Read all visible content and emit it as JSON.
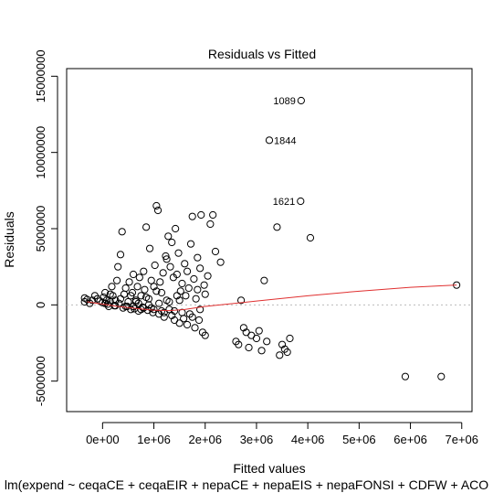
{
  "chart_data": {
    "type": "scatter",
    "title": "Residuals vs Fitted",
    "xlabel": "Fitted values",
    "ylabel": "Residuals",
    "caption": "lm(expend ~ ceqaCE + ceqaEIR + nepaCE + nepaEIS + nepaFONSI + CDFW + ACO",
    "xlim": [
      -700000,
      7200000
    ],
    "ylim": [
      -7000000,
      15500000
    ],
    "x_ticks": [
      0,
      1000000,
      2000000,
      3000000,
      4000000,
      5000000,
      6000000,
      7000000
    ],
    "x_tick_labels": [
      "0e+00",
      "1e+06",
      "2e+06",
      "3e+06",
      "4e+06",
      "5e+06",
      "6e+06",
      "7e+06"
    ],
    "y_ticks": [
      -5000000,
      0,
      5000000,
      10000000,
      15000000
    ],
    "y_tick_labels": [
      "-5000000",
      "0",
      "5000000",
      "10000000",
      "15000000"
    ],
    "colors": {
      "points": "#000000",
      "smooth": "#e03030",
      "zero_line": "#bbbbbb"
    },
    "labeled_points": [
      {
        "label": "1089",
        "x": 3870000,
        "y": 13400000
      },
      {
        "label": "1844",
        "x": 3250000,
        "y": 10800000
      },
      {
        "label": "1621",
        "x": 3860000,
        "y": 6800000
      }
    ],
    "points": [
      [
        -350000,
        200000
      ],
      [
        -350000,
        450000
      ],
      [
        -300000,
        350000
      ],
      [
        -250000,
        100000
      ],
      [
        -200000,
        300000
      ],
      [
        -150000,
        600000
      ],
      [
        -100000,
        400000
      ],
      [
        -50000,
        250000
      ],
      [
        0,
        150000
      ],
      [
        20000,
        500000
      ],
      [
        50000,
        800000
      ],
      [
        80000,
        300000
      ],
      [
        100000,
        50000
      ],
      [
        120000,
        -100000
      ],
      [
        150000,
        200000
      ],
      [
        180000,
        1200000
      ],
      [
        200000,
        600000
      ],
      [
        230000,
        -50000
      ],
      [
        250000,
        300000
      ],
      [
        280000,
        1600000
      ],
      [
        300000,
        2500000
      ],
      [
        320000,
        100000
      ],
      [
        350000,
        3300000
      ],
      [
        380000,
        4800000
      ],
      [
        400000,
        -200000
      ],
      [
        420000,
        700000
      ],
      [
        450000,
        1100000
      ],
      [
        480000,
        -100000
      ],
      [
        500000,
        200000
      ],
      [
        520000,
        1500000
      ],
      [
        550000,
        -300000
      ],
      [
        580000,
        800000
      ],
      [
        600000,
        2000000
      ],
      [
        620000,
        -250000
      ],
      [
        650000,
        300000
      ],
      [
        680000,
        1200000
      ],
      [
        700000,
        -400000
      ],
      [
        720000,
        1800000
      ],
      [
        750000,
        600000
      ],
      [
        780000,
        -150000
      ],
      [
        800000,
        2200000
      ],
      [
        820000,
        1000000
      ],
      [
        850000,
        5100000
      ],
      [
        880000,
        -350000
      ],
      [
        900000,
        400000
      ],
      [
        920000,
        3700000
      ],
      [
        950000,
        1600000
      ],
      [
        980000,
        -500000
      ],
      [
        1000000,
        1200000
      ],
      [
        1020000,
        2600000
      ],
      [
        1050000,
        6500000
      ],
      [
        1080000,
        6200000
      ],
      [
        1100000,
        -600000
      ],
      [
        1120000,
        1500000
      ],
      [
        1150000,
        800000
      ],
      [
        1180000,
        2100000
      ],
      [
        1200000,
        -800000
      ],
      [
        1230000,
        3200000
      ],
      [
        1250000,
        3000000
      ],
      [
        1280000,
        4500000
      ],
      [
        1300000,
        -300000
      ],
      [
        1320000,
        2500000
      ],
      [
        1350000,
        4100000
      ],
      [
        1380000,
        1800000
      ],
      [
        1400000,
        -1000000
      ],
      [
        1420000,
        5000000
      ],
      [
        1450000,
        2000000
      ],
      [
        1480000,
        3400000
      ],
      [
        1500000,
        -1200000
      ],
      [
        1520000,
        900000
      ],
      [
        1550000,
        1400000
      ],
      [
        1580000,
        -900000
      ],
      [
        1600000,
        2700000
      ],
      [
        1620000,
        600000
      ],
      [
        1650000,
        -1300000
      ],
      [
        1680000,
        1100000
      ],
      [
        1700000,
        -600000
      ],
      [
        1720000,
        4000000
      ],
      [
        1750000,
        5800000
      ],
      [
        1780000,
        1700000
      ],
      [
        1800000,
        -1500000
      ],
      [
        1820000,
        400000
      ],
      [
        1850000,
        3100000
      ],
      [
        1880000,
        -1000000
      ],
      [
        1900000,
        2400000
      ],
      [
        1920000,
        5900000
      ],
      [
        1950000,
        -1800000
      ],
      [
        1980000,
        1300000
      ],
      [
        2000000,
        -2000000
      ],
      [
        2050000,
        1900000
      ],
      [
        2100000,
        5300000
      ],
      [
        2150000,
        5900000
      ],
      [
        2200000,
        3500000
      ],
      [
        2300000,
        2800000
      ],
      [
        2000000,
        700000
      ],
      [
        1900000,
        -300000
      ],
      [
        1850000,
        1000000
      ],
      [
        1750000,
        -800000
      ],
      [
        1650000,
        2200000
      ],
      [
        1550000,
        -500000
      ],
      [
        1450000,
        600000
      ],
      [
        1350000,
        -700000
      ],
      [
        1250000,
        300000
      ],
      [
        1150000,
        -400000
      ],
      [
        1050000,
        900000
      ],
      [
        950000,
        -200000
      ],
      [
        850000,
        500000
      ],
      [
        750000,
        -300000
      ],
      [
        650000,
        200000
      ],
      [
        550000,
        600000
      ],
      [
        450000,
        -100000
      ],
      [
        350000,
        400000
      ],
      [
        250000,
        -50000
      ],
      [
        150000,
        700000
      ],
      [
        50000,
        100000
      ],
      [
        600000,
        -100000
      ],
      [
        700000,
        100000
      ],
      [
        800000,
        -200000
      ],
      [
        900000,
        0
      ],
      [
        1000000,
        -300000
      ],
      [
        1100000,
        100000
      ],
      [
        1200000,
        -500000
      ],
      [
        1300000,
        200000
      ],
      [
        1400000,
        -400000
      ],
      [
        1500000,
        300000
      ],
      [
        2600000,
        -2400000
      ],
      [
        2650000,
        -2600000
      ],
      [
        2700000,
        300000
      ],
      [
        2750000,
        -1500000
      ],
      [
        2800000,
        -1800000
      ],
      [
        2850000,
        -2800000
      ],
      [
        2900000,
        -2000000
      ],
      [
        3000000,
        -2200000
      ],
      [
        3050000,
        -1700000
      ],
      [
        3100000,
        -3000000
      ],
      [
        3150000,
        1600000
      ],
      [
        3200000,
        -2400000
      ],
      [
        3400000,
        5100000
      ],
      [
        3450000,
        -3300000
      ],
      [
        3500000,
        -2600000
      ],
      [
        3550000,
        -2900000
      ],
      [
        3600000,
        -3100000
      ],
      [
        3650000,
        -2200000
      ],
      [
        4050000,
        4400000
      ],
      [
        5900000,
        -4700000
      ],
      [
        6600000,
        -4700000
      ],
      [
        6900000,
        1300000
      ],
      [
        3870000,
        13400000
      ],
      [
        3250000,
        10800000
      ],
      [
        3860000,
        6800000
      ]
    ],
    "smooth_curve": [
      [
        -300000,
        200000
      ],
      [
        0,
        50000
      ],
      [
        300000,
        -100000
      ],
      [
        700000,
        -250000
      ],
      [
        1000000,
        -350000
      ],
      [
        1300000,
        -380000
      ],
      [
        1600000,
        -300000
      ],
      [
        2000000,
        -100000
      ],
      [
        3000000,
        250000
      ],
      [
        4000000,
        600000
      ],
      [
        5000000,
        900000
      ],
      [
        6000000,
        1150000
      ],
      [
        6900000,
        1300000
      ]
    ]
  }
}
